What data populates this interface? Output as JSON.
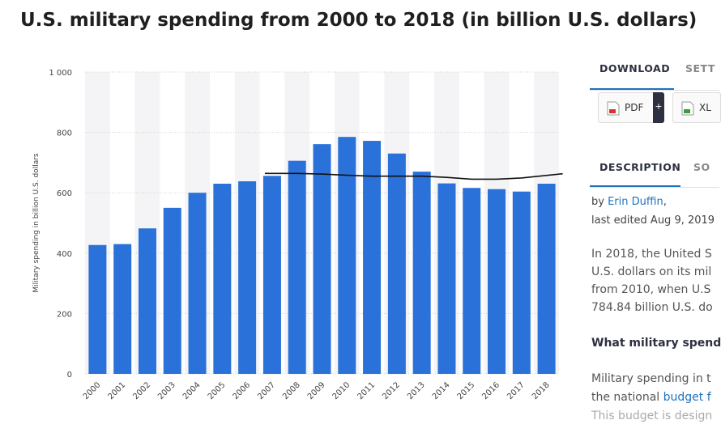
{
  "page": {
    "title": "U.S. military spending from 2000 to 2018 (in billion U.S. dollars)"
  },
  "colors": {
    "bar": "#2a72d9",
    "line": "#111111",
    "accent": "#1e73be"
  },
  "chart_data": {
    "type": "bar",
    "title": "U.S. military spending from 2000 to 2018 (in billion U.S. dollars)",
    "xlabel": "",
    "ylabel": "Military spending in billion U.S. dollars",
    "categories": [
      "2000",
      "2001",
      "2002",
      "2003",
      "2004",
      "2005",
      "2006",
      "2007",
      "2008",
      "2009",
      "2010",
      "2011",
      "2012",
      "2013",
      "2014",
      "2015",
      "2016",
      "2017",
      "2018"
    ],
    "values": [
      427,
      430,
      482,
      550,
      600,
      630,
      638,
      656,
      706,
      761,
      785,
      772,
      730,
      670,
      631,
      616,
      612,
      604,
      630
    ],
    "trend_line": {
      "categories": [
        "2007",
        "2008",
        "2009",
        "2010",
        "2011",
        "2012",
        "2013",
        "2014",
        "2015",
        "2016",
        "2017",
        "2018"
      ],
      "values": [
        664,
        664,
        662,
        658,
        655,
        655,
        655,
        651,
        645,
        645,
        649,
        663
      ]
    },
    "ylim": [
      0,
      1000
    ],
    "yticks": [
      0,
      200,
      400,
      600,
      800,
      1000
    ],
    "ytick_labels": [
      "0",
      "200",
      "400",
      "600",
      "800",
      "1 000"
    ],
    "grid": true
  },
  "sidebar": {
    "tabs_top": [
      "DOWNLOAD",
      "SETT"
    ],
    "downloads": [
      {
        "label": "PDF",
        "plus": "+"
      },
      {
        "label": "XL"
      }
    ],
    "tabs_bottom": [
      "DESCRIPTION",
      "SO"
    ],
    "by_prefix": "by ",
    "author": "Erin Duffin",
    "by_suffix": ",",
    "last_edited": "last edited Aug 9, 2019",
    "description_lines": [
      "In 2018, the United S",
      "U.S. dollars on its mil",
      "from 2010, when U.S",
      "784.84 billion U.S. do"
    ],
    "subheading": "What military spend",
    "body2_line1": "Military spending in t",
    "body2_line2_prefix": "the national ",
    "body2_line2_link": "budget f",
    "body2_line3": "This budget is design"
  }
}
